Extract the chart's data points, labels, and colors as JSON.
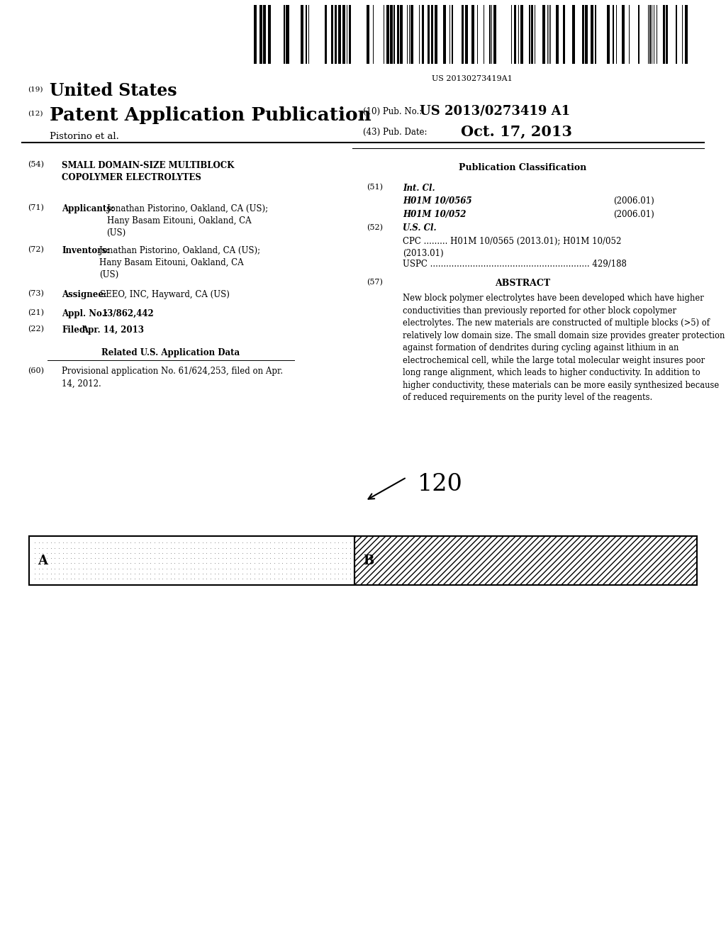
{
  "bg_color": "#ffffff",
  "barcode_text": "US 20130273419A1",
  "title_19": "United States",
  "title_12": "Patent Application Publication",
  "pub_no_label": "(10) Pub. No.:",
  "pub_no_value": "US 2013/0273419 A1",
  "pub_date_label": "(43) Pub. Date:",
  "pub_date_value": "Oct. 17, 2013",
  "inventor_label": "Pistorino et al.",
  "section54_label": "(54)",
  "section54_title": "SMALL DOMAIN-SIZE MULTIBLOCK\nCOPOLYMER ELECTROLYTES",
  "section71_label": "(71)",
  "section71_title": "Applicants:",
  "section71_text": "Jonathan Pistorino, Oakland, CA (US);\nHany Basam Eitouni, Oakland, CA\n(US)",
  "section72_label": "(72)",
  "section72_title": "Inventors:",
  "section72_text": "Jonathan Pistorino, Oakland, CA (US);\nHany Basam Eitouni, Oakland, CA\n(US)",
  "section73_label": "(73)",
  "section73_title": "Assignee:",
  "section73_text": "SEEO, INC, Hayward, CA (US)",
  "section21_label": "(21)",
  "section21_title": "Appl. No.:",
  "section21_text": "13/862,442",
  "section22_label": "(22)",
  "section22_title": "Filed:",
  "section22_text": "Apr. 14, 2013",
  "related_title": "Related U.S. Application Data",
  "section60_label": "(60)",
  "section60_text": "Provisional application No. 61/624,253, filed on Apr.\n14, 2012.",
  "pub_class_title": "Publication Classification",
  "section51_label": "(51)",
  "section51_title": "Int. Cl.",
  "section51_class1": "H01M 10/0565",
  "section51_class1_year": "(2006.01)",
  "section51_class2": "H01M 10/052",
  "section51_class2_year": "(2006.01)",
  "section52_label": "(52)",
  "section52_title": "U.S. Cl.",
  "section52_cpc": "CPC ......... H01M 10/0565 (2013.01); H01M 10/052\n(2013.01)",
  "section52_uspc": "USPC ............................................................ 429/188",
  "section57_label": "(57)",
  "section57_title": "ABSTRACT",
  "abstract_text": "New block polymer electrolytes have been developed which have higher conductivities than previously reported for other block copolymer electrolytes. The new materials are constructed of multiple blocks (>5) of relatively low domain size. The small domain size provides greater protection against formation of dendrites during cycling against lithium in an electrochemical cell, while the large total molecular weight insures poor long range alignment, which leads to higher conductivity. In addition to higher conductivity, these materials can be more easily synthesized because of reduced requirements on the purity level of the reagents.",
  "diagram_label": "120",
  "block_A_label": "A",
  "block_B_label": "B"
}
